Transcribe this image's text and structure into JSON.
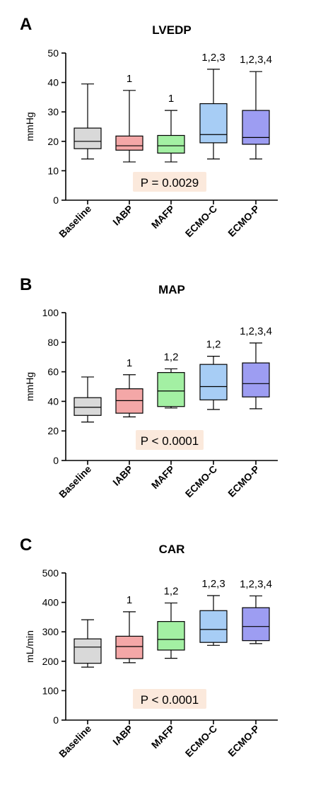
{
  "chart_data": [
    {
      "type": "box",
      "panel_letter": "A",
      "title": "LVEDP",
      "ylabel": "mmHg",
      "ylim": [
        0,
        50
      ],
      "yticks": [
        0,
        10,
        20,
        30,
        40,
        50
      ],
      "categories": [
        "Baseline",
        "IABP",
        "MAFP",
        "ECMO-C",
        "ECMO-P"
      ],
      "boxes": [
        {
          "min": 14,
          "q1": 17.5,
          "median": 20,
          "q3": 24.5,
          "max": 39.5,
          "sig": "",
          "color": "#d9d9d9"
        },
        {
          "min": 13,
          "q1": 17,
          "median": 18.5,
          "q3": 21.8,
          "max": 37.3,
          "sig": "1",
          "color": "#f4a7a7"
        },
        {
          "min": 13,
          "q1": 16,
          "median": 18.5,
          "q3": 22,
          "max": 30.5,
          "sig": "1",
          "color": "#a3f0a3"
        },
        {
          "min": 14,
          "q1": 19.5,
          "median": 22.3,
          "q3": 32.8,
          "max": 44.5,
          "sig": "1,2,3",
          "color": "#a7cdf5"
        },
        {
          "min": 14,
          "q1": 19,
          "median": 21.3,
          "q3": 30.5,
          "max": 43.7,
          "sig": "1,2,3,4",
          "color": "#9d9df2"
        }
      ],
      "pvalue": "P = 0.0029",
      "pvalue_bg": "#fbe9dc"
    },
    {
      "type": "box",
      "panel_letter": "B",
      "title": "MAP",
      "ylabel": "mmHg",
      "ylim": [
        0,
        100
      ],
      "yticks": [
        0,
        20,
        40,
        60,
        80,
        100
      ],
      "categories": [
        "Baseline",
        "IABP",
        "MAFP",
        "ECMO-C",
        "ECMO-P"
      ],
      "boxes": [
        {
          "min": 26,
          "q1": 30.5,
          "median": 36,
          "q3": 42.5,
          "max": 56.5,
          "sig": "",
          "color": "#d9d9d9"
        },
        {
          "min": 29.5,
          "q1": 32,
          "median": 40.5,
          "q3": 48.5,
          "max": 58,
          "sig": "1",
          "color": "#f4a7a7"
        },
        {
          "min": 35.5,
          "q1": 36.5,
          "median": 47,
          "q3": 59.5,
          "max": 62,
          "sig": "1,2",
          "color": "#a3f0a3"
        },
        {
          "min": 34.5,
          "q1": 41,
          "median": 50,
          "q3": 65,
          "max": 70.5,
          "sig": "1,2",
          "color": "#a7cdf5"
        },
        {
          "min": 35,
          "q1": 43,
          "median": 52,
          "q3": 66,
          "max": 79.5,
          "sig": "1,2,3,4",
          "color": "#9d9df2"
        }
      ],
      "pvalue": "P < 0.0001",
      "pvalue_bg": "#fbe9dc"
    },
    {
      "type": "box",
      "panel_letter": "C",
      "title": "CAR",
      "ylabel": "mL/min",
      "ylim": [
        0,
        500
      ],
      "yticks": [
        0,
        100,
        200,
        300,
        400,
        500
      ],
      "categories": [
        "Baseline",
        "IABP",
        "MAFP",
        "ECMO-C",
        "ECMO-P"
      ],
      "boxes": [
        {
          "min": 180,
          "q1": 193,
          "median": 248,
          "q3": 276,
          "max": 341,
          "sig": "",
          "color": "#d9d9d9"
        },
        {
          "min": 195,
          "q1": 209,
          "median": 250,
          "q3": 285,
          "max": 368,
          "sig": "1",
          "color": "#f4a7a7"
        },
        {
          "min": 210,
          "q1": 238,
          "median": 274,
          "q3": 335,
          "max": 398,
          "sig": "1,2",
          "color": "#a3f0a3"
        },
        {
          "min": 254,
          "q1": 264,
          "median": 308,
          "q3": 372,
          "max": 423,
          "sig": "1,2,3",
          "color": "#a7cdf5"
        },
        {
          "min": 260,
          "q1": 270,
          "median": 318,
          "q3": 382,
          "max": 422,
          "sig": "1,2,3,4",
          "color": "#9d9df2"
        }
      ],
      "pvalue": "P < 0.0001",
      "pvalue_bg": "#fbe9dc"
    }
  ]
}
